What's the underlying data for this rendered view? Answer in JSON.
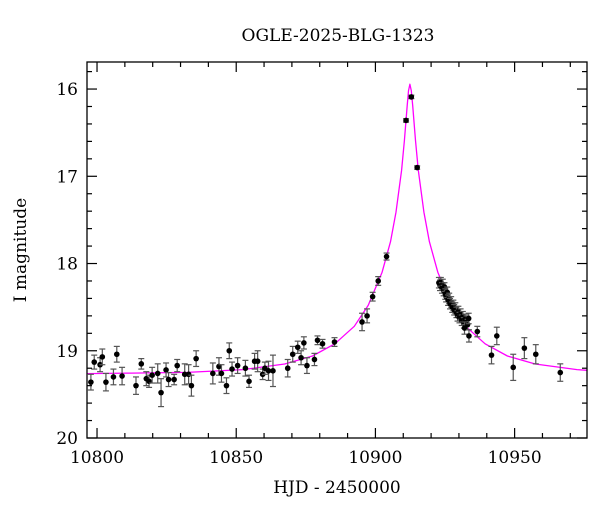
{
  "chart_data": {
    "type": "scatter",
    "title": "OGLE-2025-BLG-1323",
    "xlabel": "HJD - 2450000",
    "ylabel": "I magnitude",
    "xlim": [
      10796.4,
      10976
    ],
    "ylim": [
      20,
      15.69
    ],
    "y_inverted": true,
    "grid": false,
    "x_ticks": [
      10800,
      10850,
      10900,
      10950
    ],
    "x_tick_labels": [
      "10800",
      "10850",
      "10900",
      "10950"
    ],
    "y_ticks": [
      16,
      17,
      18,
      19,
      20
    ],
    "y_tick_labels": [
      "16",
      "17",
      "18",
      "19",
      "20"
    ],
    "colors": {
      "points": "#000000",
      "error_bars": "#555555",
      "model": "#ff00ff"
    },
    "observations": [
      [
        10797.8,
        19.36,
        0.09
      ],
      [
        10799.0,
        19.13,
        0.08
      ],
      [
        10801.1,
        19.16,
        0.08
      ],
      [
        10801.9,
        19.07,
        0.09
      ],
      [
        10803.2,
        19.36,
        0.1
      ],
      [
        10805.9,
        19.3,
        0.09
      ],
      [
        10807.1,
        19.04,
        0.09
      ],
      [
        10809.0,
        19.29,
        0.1
      ],
      [
        10814.0,
        19.4,
        0.1
      ],
      [
        10815.9,
        19.15,
        0.06
      ],
      [
        10817.7,
        19.32,
        0.08
      ],
      [
        10818.7,
        19.35,
        0.07
      ],
      [
        10819.8,
        19.28,
        0.09
      ],
      [
        10821.8,
        19.26,
        0.11
      ],
      [
        10823.0,
        19.48,
        0.16
      ],
      [
        10824.8,
        19.22,
        0.08
      ],
      [
        10825.7,
        19.33,
        0.08
      ],
      [
        10827.7,
        19.33,
        0.06
      ],
      [
        10828.8,
        19.17,
        0.07
      ],
      [
        10831.5,
        19.27,
        0.12
      ],
      [
        10832.9,
        19.27,
        0.11
      ],
      [
        10833.9,
        19.4,
        0.12
      ],
      [
        10835.6,
        19.09,
        0.09
      ],
      [
        10841.6,
        19.26,
        0.12
      ],
      [
        10843.8,
        19.18,
        0.1
      ],
      [
        10844.7,
        19.26,
        0.1
      ],
      [
        10846.5,
        19.4,
        0.09
      ],
      [
        10847.5,
        19.0,
        0.09
      ],
      [
        10848.5,
        19.21,
        0.08
      ],
      [
        10850.5,
        19.17,
        0.09
      ],
      [
        10853.3,
        19.2,
        0.09
      ],
      [
        10854.6,
        19.35,
        0.07
      ],
      [
        10856.6,
        19.12,
        0.09
      ],
      [
        10857.7,
        19.12,
        0.12
      ],
      [
        10859.5,
        19.27,
        0.06
      ],
      [
        10860.3,
        19.2,
        0.07
      ],
      [
        10861.6,
        19.23,
        0.11
      ],
      [
        10863.2,
        19.23,
        0.18
      ],
      [
        10868.5,
        19.2,
        0.1
      ],
      [
        10870.3,
        19.04,
        0.09
      ],
      [
        10872.1,
        18.96,
        0.07
      ],
      [
        10873.3,
        19.08,
        0.08
      ],
      [
        10874.3,
        18.91,
        0.07
      ],
      [
        10875.4,
        19.17,
        0.09
      ],
      [
        10878.1,
        19.1,
        0.07
      ],
      [
        10879.2,
        18.88,
        0.05
      ],
      [
        10881.0,
        18.92,
        0.05
      ],
      [
        10885.3,
        18.9,
        0.05
      ],
      [
        10895.2,
        18.67,
        0.1
      ],
      [
        10897.0,
        18.6,
        0.08
      ],
      [
        10899.0,
        18.38,
        0.05
      ],
      [
        10901.0,
        18.2,
        0.05
      ],
      [
        10904.0,
        17.92,
        0.04
      ],
      [
        10911.0,
        16.36,
        0.02
      ],
      [
        10912.9,
        16.09,
        0.02
      ],
      [
        10915.0,
        16.9,
        0.02
      ],
      [
        10922.8,
        18.22,
        0.06
      ],
      [
        10923.2,
        18.25,
        0.06
      ],
      [
        10923.5,
        18.21,
        0.05
      ],
      [
        10923.9,
        18.28,
        0.06
      ],
      [
        10924.2,
        18.24,
        0.06
      ],
      [
        10924.5,
        18.31,
        0.06
      ],
      [
        10924.8,
        18.27,
        0.05
      ],
      [
        10925.1,
        18.35,
        0.06
      ],
      [
        10925.4,
        18.38,
        0.06
      ],
      [
        10925.8,
        18.33,
        0.06
      ],
      [
        10926.1,
        18.42,
        0.06
      ],
      [
        10926.5,
        18.4,
        0.06
      ],
      [
        10926.8,
        18.46,
        0.06
      ],
      [
        10927.2,
        18.44,
        0.06
      ],
      [
        10927.6,
        18.5,
        0.06
      ],
      [
        10928.0,
        18.48,
        0.06
      ],
      [
        10928.3,
        18.53,
        0.06
      ],
      [
        10928.7,
        18.51,
        0.06
      ],
      [
        10929.1,
        18.56,
        0.06
      ],
      [
        10929.5,
        18.6,
        0.06
      ],
      [
        10929.8,
        18.55,
        0.06
      ],
      [
        10930.2,
        18.62,
        0.06
      ],
      [
        10930.6,
        18.58,
        0.06
      ],
      [
        10931.0,
        18.65,
        0.06
      ],
      [
        10931.4,
        18.61,
        0.06
      ],
      [
        10931.8,
        18.68,
        0.06
      ],
      [
        10932.2,
        18.64,
        0.06
      ],
      [
        10932.7,
        18.66,
        0.06
      ],
      [
        10933.1,
        18.7,
        0.06
      ],
      [
        10933.5,
        18.63,
        0.06
      ],
      [
        10932.0,
        18.74,
        0.07
      ],
      [
        10933.6,
        18.83,
        0.07
      ],
      [
        10936.6,
        18.78,
        0.06
      ],
      [
        10941.7,
        19.05,
        0.1
      ],
      [
        10943.6,
        18.83,
        0.1
      ],
      [
        10949.5,
        19.19,
        0.15
      ],
      [
        10953.5,
        18.97,
        0.12
      ],
      [
        10957.6,
        19.04,
        0.11
      ],
      [
        10966.4,
        19.25,
        0.1
      ]
    ],
    "model": [
      [
        10796.4,
        19.262
      ],
      [
        10812.4,
        19.256
      ],
      [
        10832.4,
        19.248
      ],
      [
        10852.4,
        19.216
      ],
      [
        10867.4,
        19.152
      ],
      [
        10877.4,
        19.06
      ],
      [
        10885.4,
        18.92
      ],
      [
        10892.4,
        18.72
      ],
      [
        10897.4,
        18.48
      ],
      [
        10902.4,
        18.1
      ],
      [
        10905.4,
        17.75
      ],
      [
        10907.4,
        17.41
      ],
      [
        10909.4,
        16.93
      ],
      [
        10910.4,
        16.59
      ],
      [
        10911.4,
        16.19
      ],
      [
        10911.9,
        16.02
      ],
      [
        10912.4,
        15.945
      ],
      [
        10912.9,
        16.02
      ],
      [
        10913.4,
        16.19
      ],
      [
        10914.4,
        16.59
      ],
      [
        10915.4,
        16.93
      ],
      [
        10917.4,
        17.41
      ],
      [
        10919.4,
        17.75
      ],
      [
        10922.4,
        18.1
      ],
      [
        10927.4,
        18.48
      ],
      [
        10932.4,
        18.72
      ],
      [
        10939.4,
        18.92
      ],
      [
        10947.4,
        19.06
      ],
      [
        10957.4,
        19.152
      ],
      [
        10972.4,
        19.216
      ],
      [
        10976.0,
        19.224
      ]
    ]
  }
}
